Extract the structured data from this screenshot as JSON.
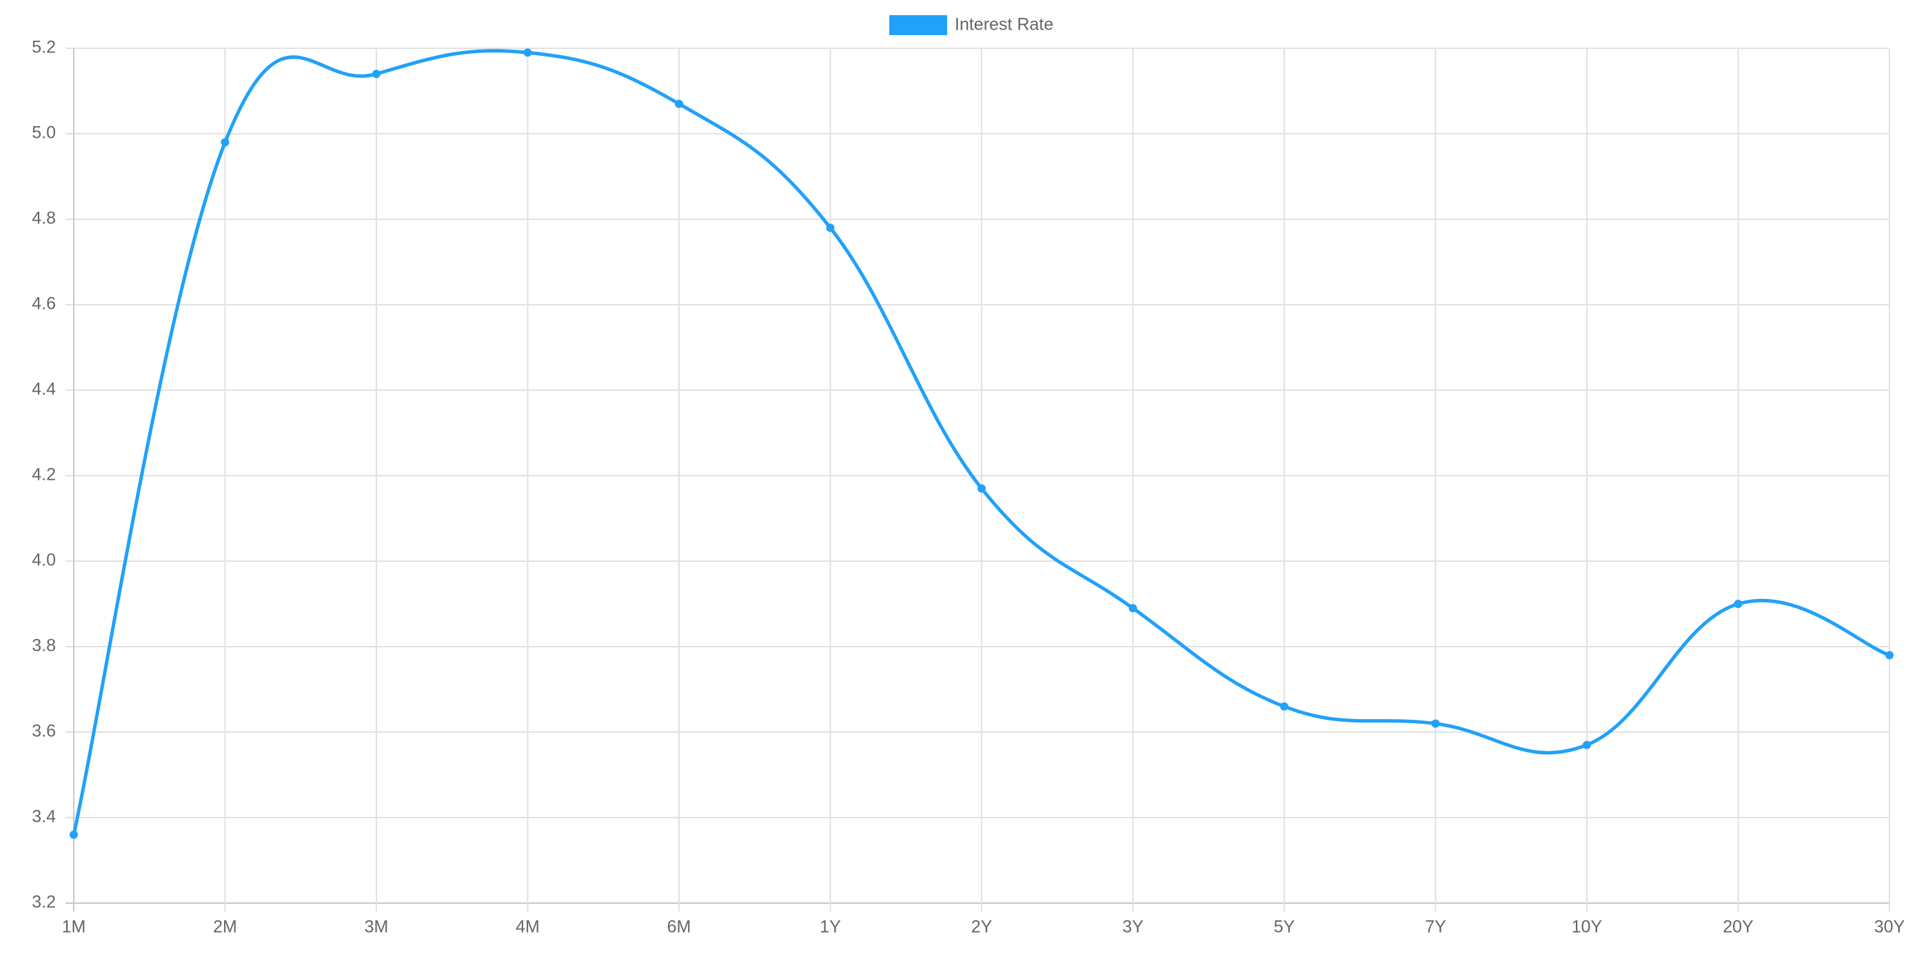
{
  "chart_data": {
    "type": "line",
    "categories": [
      "1M",
      "2M",
      "3M",
      "4M",
      "6M",
      "1Y",
      "2Y",
      "3Y",
      "5Y",
      "7Y",
      "10Y",
      "20Y",
      "30Y"
    ],
    "series": [
      {
        "name": "Interest Rate",
        "color": "#22a1f8",
        "values": [
          3.36,
          4.98,
          5.14,
          5.19,
          5.07,
          4.78,
          4.17,
          3.89,
          3.66,
          3.62,
          3.57,
          3.9,
          3.78
        ]
      }
    ],
    "ylim": [
      3.2,
      5.2
    ],
    "yticks": [
      3.2,
      3.4,
      3.6,
      3.8,
      {
        "value": 4,
        "label": "4.0"
      },
      4.2,
      4.4,
      4.6,
      4.8,
      {
        "value": 5,
        "label": "5.0"
      },
      5.2
    ],
    "grid": true,
    "legend": "top"
  }
}
